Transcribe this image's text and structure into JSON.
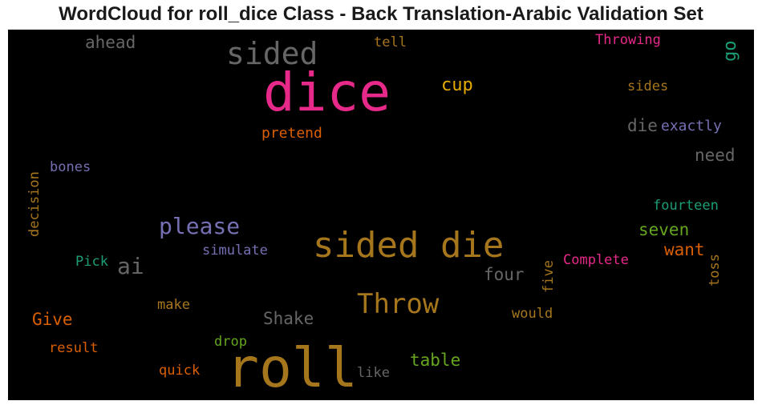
{
  "chart_data": {
    "type": "wordcloud",
    "title": "WordCloud for roll_dice Class - Back Translation-Arabic Validation Set",
    "background": "#000000",
    "words": [
      {
        "text": "dice",
        "color": "#e7298a"
      },
      {
        "text": "roll",
        "color": "#a6761d"
      },
      {
        "text": "sided die",
        "color": "#a6761d"
      },
      {
        "text": "sided",
        "color": "#666666"
      },
      {
        "text": "Throw",
        "color": "#a6761d"
      },
      {
        "text": "please",
        "color": "#7570b3"
      },
      {
        "text": "ai",
        "color": "#666666"
      },
      {
        "text": "ahead",
        "color": "#666666"
      },
      {
        "text": "tell",
        "color": "#a6761d"
      },
      {
        "text": "Throwing",
        "color": "#e7298a"
      },
      {
        "text": "go",
        "color": "#1b9e77"
      },
      {
        "text": "cup",
        "color": "#e6ab02"
      },
      {
        "text": "sides",
        "color": "#a6761d"
      },
      {
        "text": "die",
        "color": "#666666"
      },
      {
        "text": "exactly",
        "color": "#7570b3"
      },
      {
        "text": "pretend",
        "color": "#d95f02"
      },
      {
        "text": "need",
        "color": "#666666"
      },
      {
        "text": "bones",
        "color": "#7570b3"
      },
      {
        "text": "decision",
        "color": "#a6761d"
      },
      {
        "text": "fourteen",
        "color": "#1b9e77"
      },
      {
        "text": "seven",
        "color": "#66a61e"
      },
      {
        "text": "simulate",
        "color": "#7570b3"
      },
      {
        "text": "want",
        "color": "#d95f02"
      },
      {
        "text": "Pick",
        "color": "#1b9e77"
      },
      {
        "text": "Complete",
        "color": "#e7298a"
      },
      {
        "text": "toss",
        "color": "#a6761d"
      },
      {
        "text": "five",
        "color": "#a6761d"
      },
      {
        "text": "four",
        "color": "#666666"
      },
      {
        "text": "make",
        "color": "#a6761d"
      },
      {
        "text": "Shake",
        "color": "#666666"
      },
      {
        "text": "Give",
        "color": "#d95f02"
      },
      {
        "text": "would",
        "color": "#a6761d"
      },
      {
        "text": "result",
        "color": "#d95f02"
      },
      {
        "text": "drop",
        "color": "#66a61e"
      },
      {
        "text": "table",
        "color": "#66a61e"
      },
      {
        "text": "quick",
        "color": "#d95f02"
      },
      {
        "text": "like",
        "color": "#666666"
      }
    ]
  }
}
